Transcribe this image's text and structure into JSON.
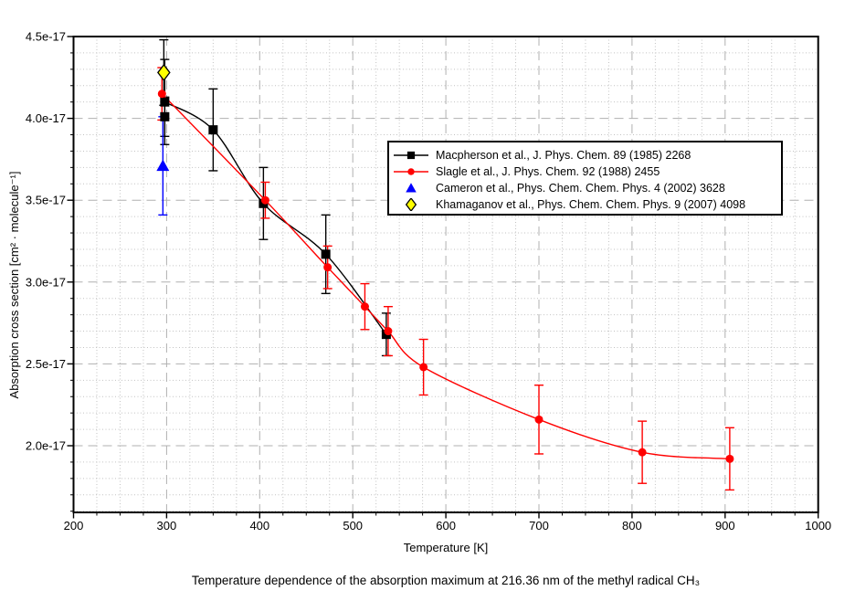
{
  "chart_data": {
    "type": "scatter",
    "caption": "Temperature dependence of the absorption maximum at 216.36 nm of the methyl radical CH₃",
    "xlabel": "Temperature [K]",
    "ylabel": "Absorption cross section [cm² · molecule⁻¹]",
    "x_axis": {
      "min": 200,
      "max": 1000,
      "major_tick_step": 100,
      "minor_tick_step": 25,
      "ticks": [
        {
          "v": 200,
          "label": "200"
        },
        {
          "v": 300,
          "label": "300"
        },
        {
          "v": 400,
          "label": "400"
        },
        {
          "v": 500,
          "label": "500"
        },
        {
          "v": 600,
          "label": "600"
        },
        {
          "v": 700,
          "label": "700"
        },
        {
          "v": 800,
          "label": "800"
        },
        {
          "v": 900,
          "label": "900"
        },
        {
          "v": 1000,
          "label": "1000"
        }
      ]
    },
    "y_axis": {
      "scale": "1e-17",
      "min": 1.59,
      "max": 4.5,
      "major_tick_step": 0.5,
      "minor_tick_step": 0.1,
      "ticks": [
        {
          "v": 4.5,
          "label": "4.5e-17"
        },
        {
          "v": 4.0,
          "label": "4.0e-17"
        },
        {
          "v": 3.5,
          "label": "3.5e-17"
        },
        {
          "v": 3.0,
          "label": "3.0e-17"
        },
        {
          "v": 2.5,
          "label": "2.5e-17"
        },
        {
          "v": 2.0,
          "label": "2.0e-17"
        }
      ]
    },
    "grid": {
      "major_color": "#b0b0b0",
      "minor_color": "#c2c2c2",
      "major_dash": "10 6",
      "minor_dash": "1 2.5"
    },
    "legend_position": "upper-right-inside",
    "series": [
      {
        "name": "macpherson-1985",
        "label": "Macpherson et al., J. Phys. Chem. 89 (1985) 2268",
        "color": "#000000",
        "marker": "square",
        "line": true,
        "points": [
          {
            "T": 298,
            "sigma": 4.1,
            "err": 0.26
          },
          {
            "T": 298,
            "sigma": 4.01,
            "err": 0.12,
            "in_line": false
          },
          {
            "T": 350,
            "sigma": 3.93,
            "err": 0.25
          },
          {
            "T": 404,
            "sigma": 3.48,
            "err": 0.22
          },
          {
            "T": 471,
            "sigma": 3.17,
            "err": 0.24
          },
          {
            "T": 536,
            "sigma": 2.68,
            "err": 0.13
          }
        ]
      },
      {
        "name": "slagle-1988",
        "label": "Slagle et al., J. Phys. Chem. 92 (1988) 2455",
        "color": "#ff0000",
        "marker": "circle",
        "line": true,
        "points": [
          {
            "T": 295,
            "sigma": 4.15,
            "err": 0.16
          },
          {
            "T": 406,
            "sigma": 3.5,
            "err": 0.11
          },
          {
            "T": 473,
            "sigma": 3.09,
            "err": 0.13
          },
          {
            "T": 513,
            "sigma": 2.85,
            "err": 0.14
          },
          {
            "T": 538,
            "sigma": 2.7,
            "err": 0.15
          },
          {
            "T": 576,
            "sigma": 2.48,
            "err": 0.17
          },
          {
            "T": 700,
            "sigma": 2.16,
            "err": 0.21
          },
          {
            "T": 811,
            "sigma": 1.96,
            "err": 0.19
          },
          {
            "T": 905,
            "sigma": 1.92,
            "err": 0.19
          }
        ]
      },
      {
        "name": "cameron-2002",
        "label": "Cameron et al., Phys. Chem. Chem. Phys. 4 (2002) 3628",
        "color": "#0000ff",
        "marker": "triangle",
        "line": false,
        "points": [
          {
            "T": 296,
            "sigma": 3.71,
            "err": 0.3
          }
        ]
      },
      {
        "name": "khamaganov-2007",
        "label": "Khamaganov et al., Phys. Chem. Chem. Phys. 9 (2007) 4098",
        "color": "#ffff00",
        "marker": "diamond",
        "marker_stroke": "#000000",
        "error_color": "#000000",
        "line": false,
        "points": [
          {
            "T": 297,
            "sigma": 4.28,
            "err": 0.2
          }
        ]
      }
    ]
  }
}
